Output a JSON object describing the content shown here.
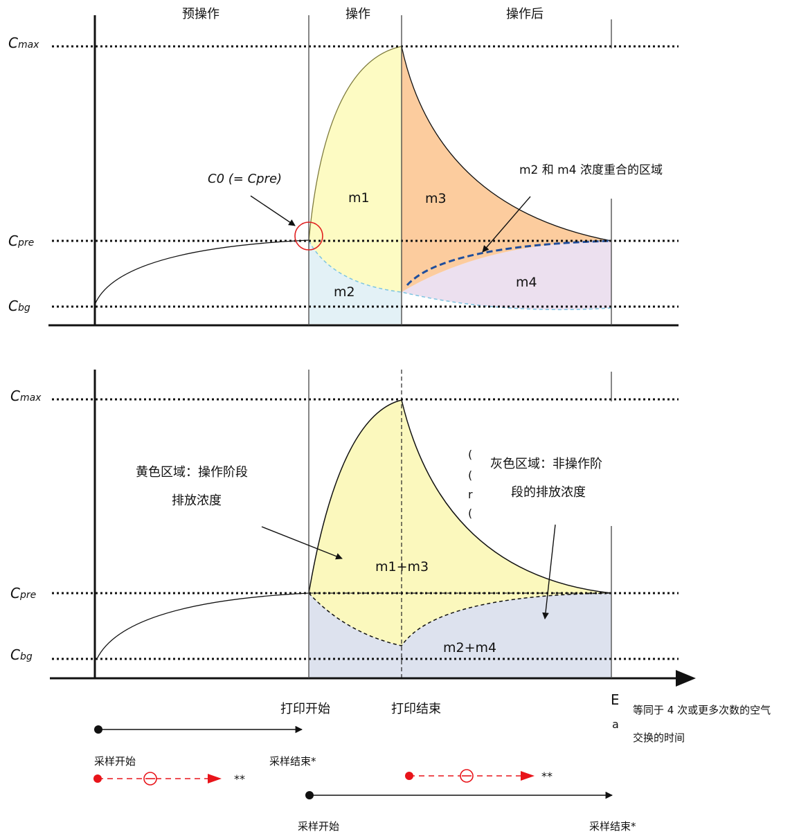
{
  "top_panel": {
    "phase_labels": {
      "pre": "预操作",
      "op": "操作",
      "post": "操作后"
    },
    "y_labels": {
      "cmax": {
        "main": "C",
        "sub": "max"
      },
      "cpre": {
        "main": "C",
        "sub": "pre"
      },
      "cbg": {
        "main": "C",
        "sub": "bg"
      }
    },
    "c0_label": "C0 (= Cpre)",
    "regions": {
      "m1": "m1",
      "m2": "m2",
      "m3": "m3",
      "m4": "m4"
    },
    "overlap_note": "m2 和 m4 浓度重合的区域",
    "colors": {
      "m1": "#fdfbc3",
      "m2": "#e3f1f6",
      "m3": "#fccc9e",
      "m4": "#ece0ef",
      "overlap_dash": "#1f4e9c",
      "marker": "#e02020"
    }
  },
  "bottom_panel": {
    "y_labels": {
      "cmax": {
        "main": "C",
        "sub": "max"
      },
      "cpre": {
        "main": "C",
        "sub": "pre"
      },
      "cbg": {
        "main": "C",
        "sub": "bg"
      }
    },
    "yellow_note_line1": "黄色区域：操作阶段",
    "yellow_note_line2": "排放浓度",
    "gray_note_line1": "灰色区域：非操作阶",
    "gray_note_line2": "段的排放浓度",
    "regions": {
      "yellow": "m1+m3",
      "gray": "m2+m4"
    },
    "x_labels": {
      "print_start": "打印开始",
      "print_end": "打印结束"
    },
    "air_exchange_line1": "等同于 4 次或更多次数的空气",
    "air_exchange_line2": "交换的时间",
    "clipped_glyphs": [
      "(",
      "(",
      "r",
      "(",
      "E",
      "a"
    ],
    "colors": {
      "yellow": "#fbf8bd",
      "gray": "#dde2ee"
    }
  },
  "sampling": {
    "line1_start": "采样开始",
    "line1_end": "采样结束*",
    "red_mark_1": "**",
    "red_mark_2": "**",
    "line2_start": "采样开始",
    "line2_end": "采样结束*",
    "colors": {
      "red": "#e8141a",
      "black": "#111111"
    }
  }
}
